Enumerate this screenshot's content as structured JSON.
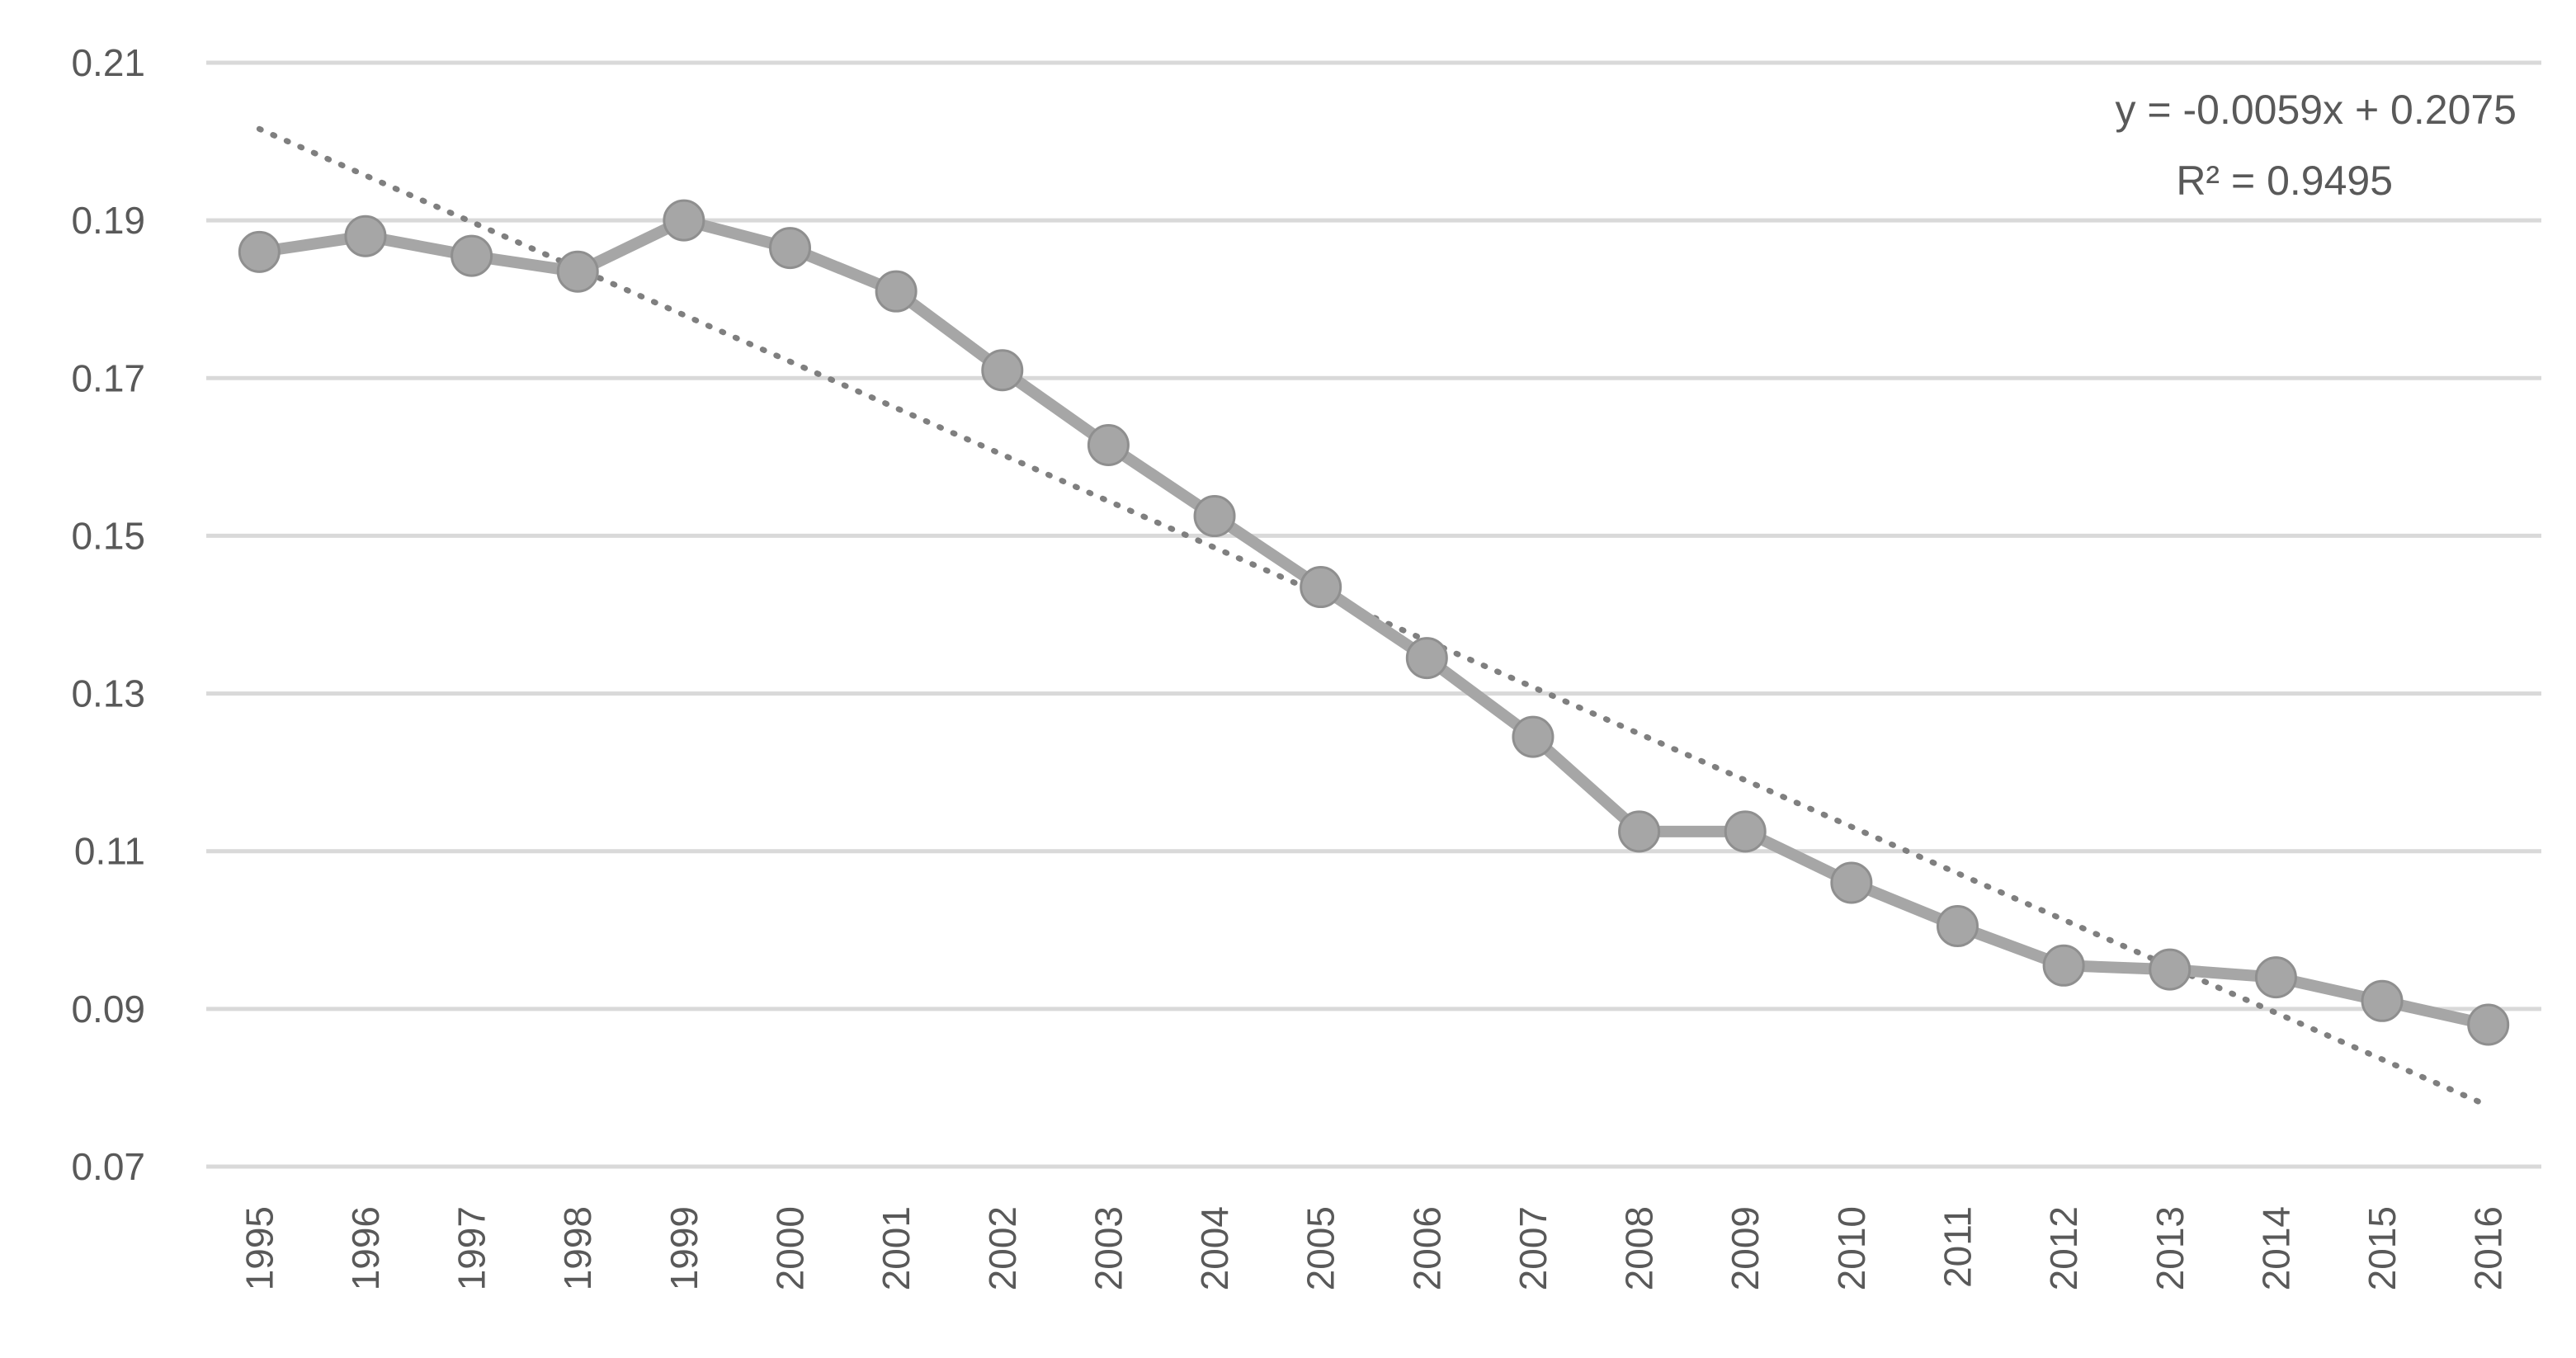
{
  "chart_data": {
    "type": "line",
    "title": "",
    "xlabel": "",
    "ylabel": "",
    "ylim": [
      0.07,
      0.21
    ],
    "yticks": [
      "0.07",
      "0.09",
      "0.11",
      "0.13",
      "0.15",
      "0.17",
      "0.19",
      "0.21"
    ],
    "grid": true,
    "legend": "none",
    "categories": [
      "1995",
      "1996",
      "1997",
      "1998",
      "1999",
      "2000",
      "2001",
      "2002",
      "2003",
      "2004",
      "2005",
      "2006",
      "2007",
      "2008",
      "2009",
      "2010",
      "2011",
      "2012",
      "2013",
      "2014",
      "2015",
      "2016"
    ],
    "series": [
      {
        "values": [
          0.186,
          0.188,
          0.1855,
          0.1835,
          0.19,
          0.1865,
          0.181,
          0.171,
          0.1615,
          0.1525,
          0.1435,
          0.1345,
          0.1245,
          0.1125,
          0.1125,
          0.106,
          0.1005,
          0.0955,
          0.095,
          0.094,
          0.091,
          0.088
        ],
        "color": "#a6a6a6",
        "marker": "circle"
      }
    ],
    "trendline": {
      "type": "linear",
      "slope": -0.0059,
      "intercept": 0.2075,
      "color": "#7f7f7f",
      "style": "dotted",
      "equation_label": "y = -0.0059x + 0.2075",
      "r2_label": "R² = 0.9495"
    },
    "colors": {
      "gridline": "#d9d9d9",
      "text": "#595959"
    }
  }
}
